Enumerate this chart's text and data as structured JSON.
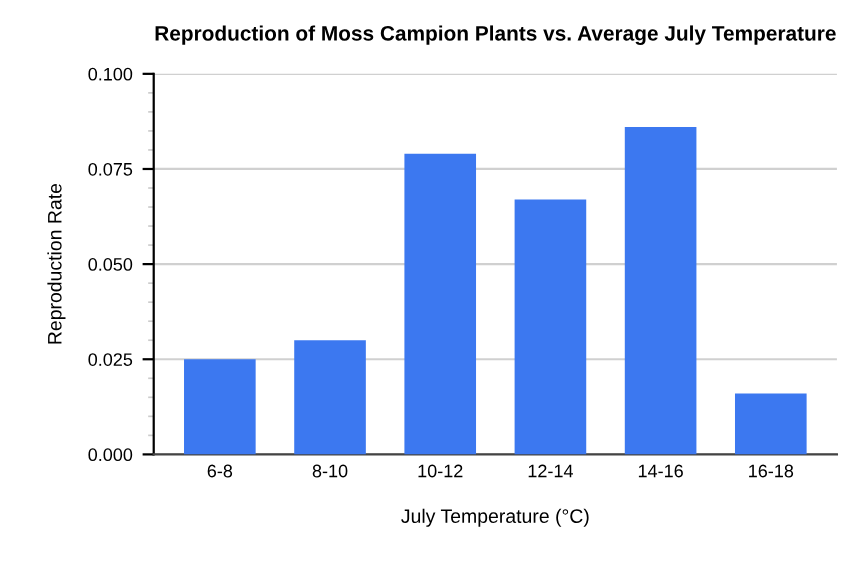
{
  "chart_data": {
    "type": "bar",
    "title": "Reproduction of Moss Campion Plants vs. Average July Temperature",
    "xlabel": "July Temperature (°C)",
    "ylabel": "Reproduction Rate",
    "categories": [
      "6-8",
      "8-10",
      "10-12",
      "12-14",
      "14-16",
      "16-18"
    ],
    "values": [
      0.025,
      0.03,
      0.079,
      0.067,
      0.086,
      0.016
    ],
    "color": "#3c78f0",
    "ylim": [
      0,
      0.1
    ],
    "yticks": [
      {
        "value": 0,
        "label": "0.000"
      },
      {
        "value": 0.025,
        "label": "0.025"
      },
      {
        "value": 0.05,
        "label": "0.050"
      },
      {
        "value": 0.075,
        "label": "0.075"
      },
      {
        "value": 0.1,
        "label": "0.100"
      }
    ],
    "grid": "y",
    "legend": false
  }
}
